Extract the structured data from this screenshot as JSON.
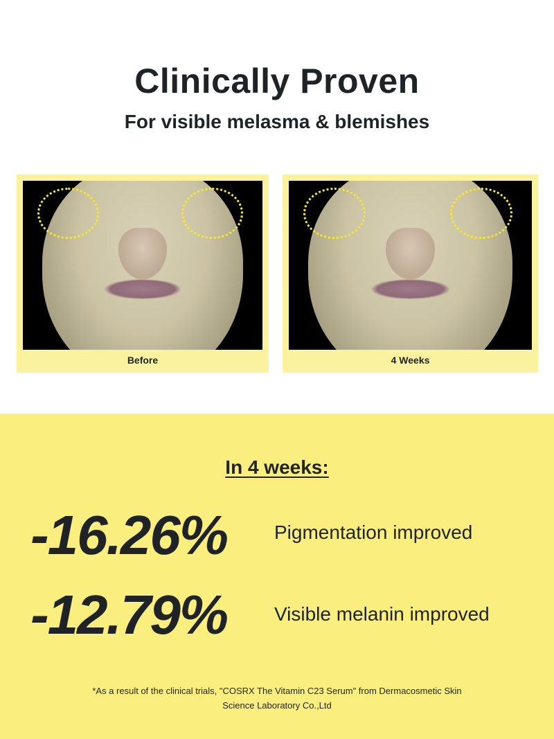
{
  "header": {
    "title": "Clinically Proven",
    "subtitle": "For visible melasma & blemishes"
  },
  "comparison": [
    {
      "label": "Before",
      "image": "face-before-photo"
    },
    {
      "label": "4 Weeks",
      "image": "face-after-photo"
    }
  ],
  "results": {
    "heading": "In 4 weeks:",
    "stats": [
      {
        "value": "-16.26%",
        "label": "Pigmentation improved"
      },
      {
        "value": "-12.79%",
        "label": "Visible melanin improved"
      }
    ],
    "footnote_line1": "*As a result of the clinical trials, \"COSRX The Vitamin C23 Serum\" from Dermacosmetic Skin",
    "footnote_line2": "Science Laboratory Co.,Ltd"
  },
  "colors": {
    "panel": "#f9ee7e",
    "frame": "#fbf29f",
    "highlight_circle": "#f5ea2a",
    "text": "#1f2326"
  }
}
